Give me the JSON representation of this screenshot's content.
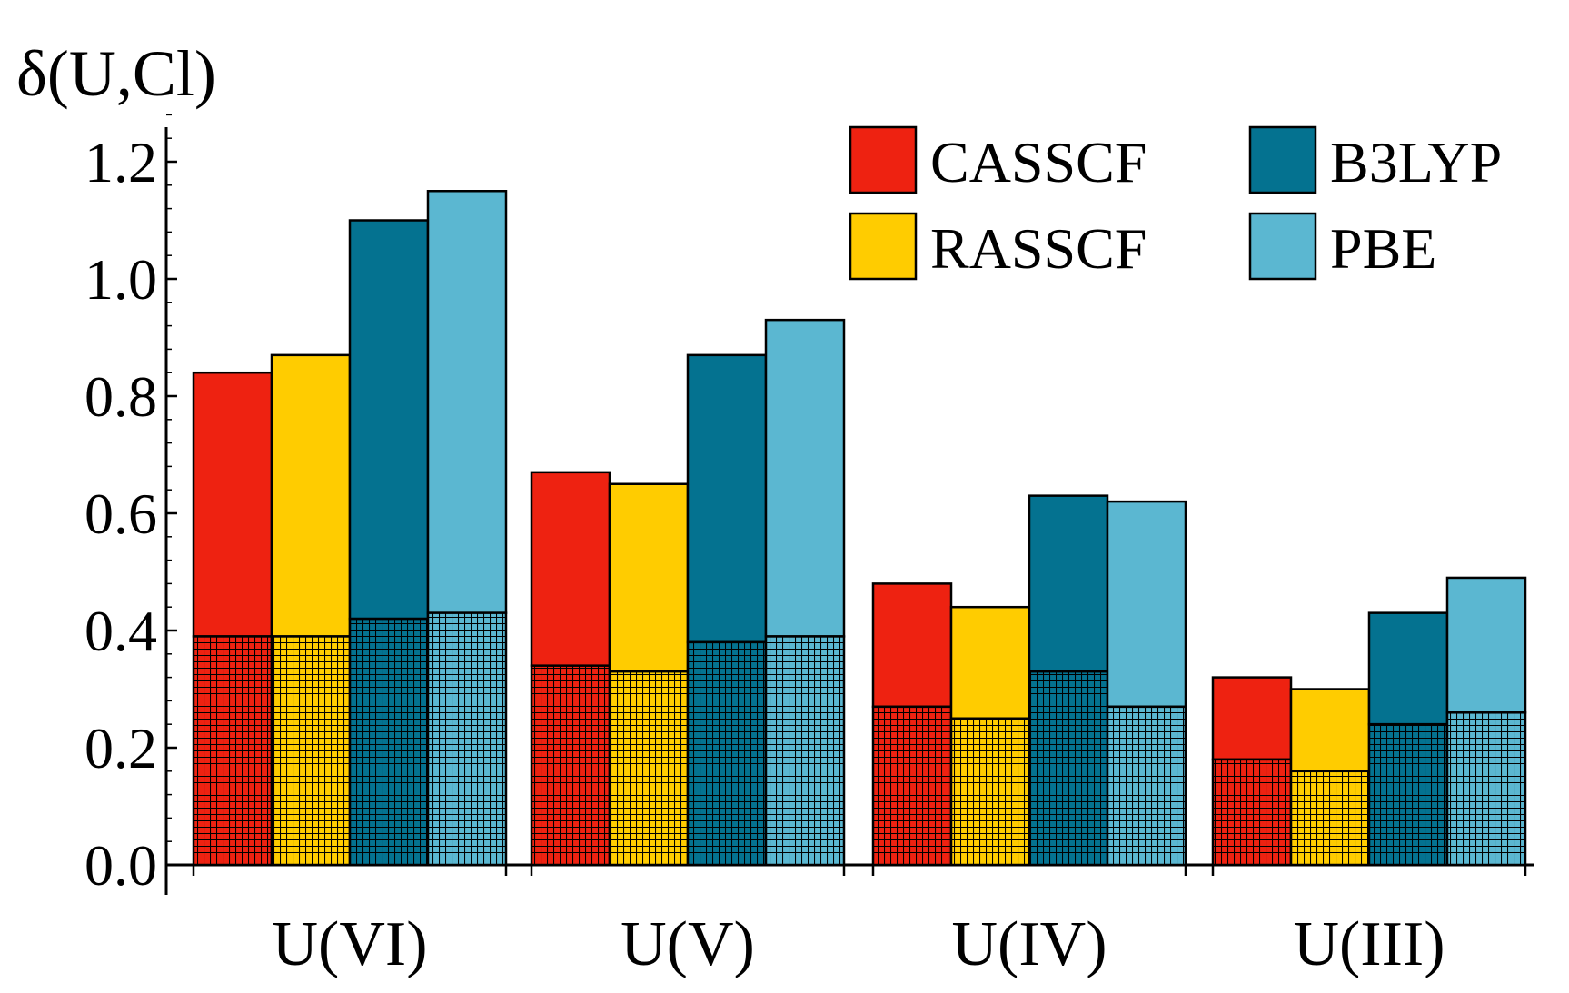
{
  "chart_data": {
    "type": "bar",
    "title": "",
    "ylabel": "δ(U,Cl)",
    "xlabel": "",
    "ylim": [
      0,
      1.26
    ],
    "yticks": [
      "0.0",
      "0.2",
      "0.4",
      "0.6",
      "0.8",
      "1.0",
      "1.2"
    ],
    "categories": [
      "U(VI)",
      "U(V)",
      "U(IV)",
      "U(III)"
    ],
    "legend_position": "top-right",
    "component_note": "Cross-hatched lower part of each bar = hatched component; solid upper part completes the total.",
    "series": [
      {
        "name": "CASSCF",
        "color": "#ee2211",
        "values": [
          0.84,
          0.67,
          0.48,
          0.32
        ],
        "hatched_values": [
          0.39,
          0.34,
          0.27,
          0.18
        ]
      },
      {
        "name": "RASSCF",
        "color": "#ffcc00",
        "values": [
          0.87,
          0.65,
          0.44,
          0.3
        ],
        "hatched_values": [
          0.39,
          0.33,
          0.25,
          0.16
        ]
      },
      {
        "name": "B3LYP",
        "color": "#047290",
        "values": [
          1.1,
          0.87,
          0.63,
          0.43
        ],
        "hatched_values": [
          0.42,
          0.38,
          0.33,
          0.24
        ]
      },
      {
        "name": "PBE",
        "color": "#5bb7d1",
        "values": [
          1.15,
          0.93,
          0.62,
          0.49
        ],
        "hatched_values": [
          0.43,
          0.39,
          0.27,
          0.26
        ]
      }
    ]
  }
}
